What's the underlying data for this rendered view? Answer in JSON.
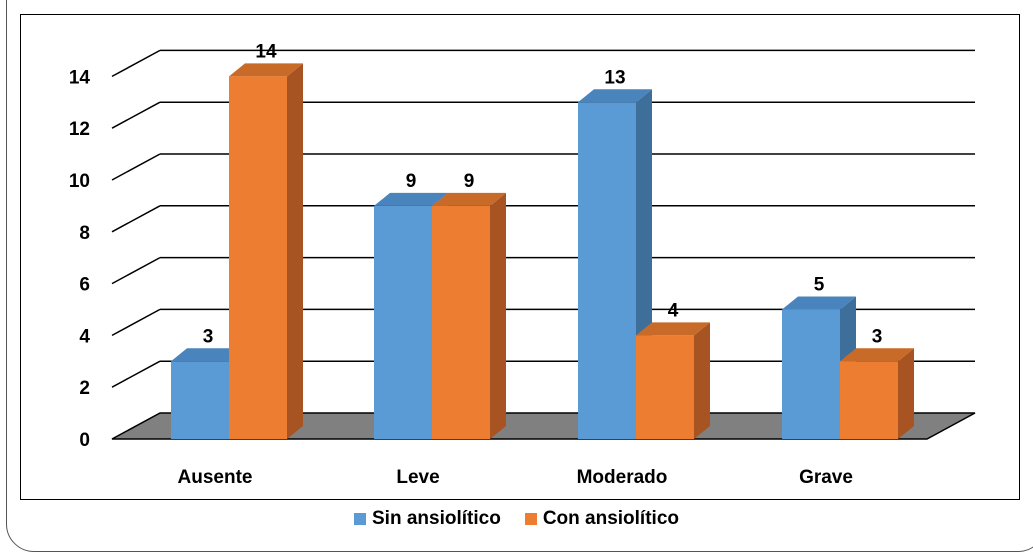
{
  "chart_data": {
    "type": "bar",
    "style": "3d-clustered-column",
    "categories": [
      "Ausente",
      "Leve",
      "Moderado",
      "Grave"
    ],
    "series": [
      {
        "name": "Sin ansiolítico",
        "values": [
          3,
          9,
          13,
          5
        ],
        "color": "#5B9BD5",
        "side_color": "#3E6F9A",
        "top_color": "#4A84BC"
      },
      {
        "name": "Con ansiolítico",
        "values": [
          14,
          9,
          4,
          3
        ],
        "color": "#ED7D31",
        "side_color": "#A85422",
        "top_color": "#C86A28"
      }
    ],
    "y_ticks": [
      "0",
      "2",
      "4",
      "6",
      "8",
      "10",
      "12",
      "14"
    ],
    "ylim": [
      0,
      14
    ],
    "grid": true,
    "floor_color": "#808080",
    "legend_position": "bottom",
    "title": "",
    "xlabel": "",
    "ylabel": ""
  }
}
